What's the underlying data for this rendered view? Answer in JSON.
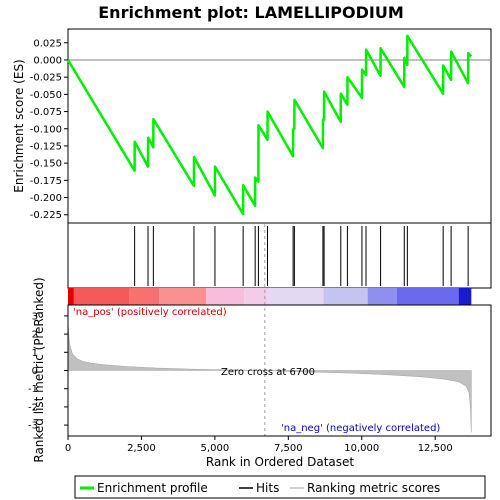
{
  "chart_data": {
    "type": "line",
    "title": "Enrichment plot: LAMELLIPODIUM",
    "x_axis": {
      "label": "Rank in Ordered Dataset",
      "lim": [
        0,
        14400
      ],
      "ticks": [
        0,
        2500,
        5000,
        7500,
        10000,
        12500
      ],
      "tick_labels": [
        "0",
        "2,500",
        "5,000",
        "7,500",
        "10,000",
        "12,500"
      ]
    },
    "es_panel": {
      "ylabel": "Enrichment score (ES)",
      "ylim": [
        -0.237,
        0.045
      ],
      "yticks": [
        0.025,
        0.0,
        -0.025,
        -0.05,
        -0.075,
        -0.1,
        -0.125,
        -0.15,
        -0.175,
        -0.2,
        -0.225
      ],
      "ytick_labels": [
        "0.025",
        "0.000",
        "-0.025",
        "-0.050",
        "-0.075",
        "-0.100",
        "-0.125",
        "-0.150",
        "-0.175",
        "-0.200",
        "-0.225"
      ],
      "grid": false,
      "series": [
        {
          "legend_index": 0,
          "color": "#00ee00",
          "x": [
            0,
            2266,
            2270,
            2722,
            2726,
            2904,
            2908,
            4286,
            4290,
            5000,
            5004,
            5960,
            5964,
            6370,
            6374,
            6480,
            6484,
            6790,
            6794,
            7661,
            7665,
            7705,
            7709,
            8676,
            8680,
            8716,
            8720,
            9284,
            9288,
            9510,
            9514,
            10005,
            10009,
            10143,
            10147,
            10639,
            10643,
            11446,
            11450,
            11550,
            11554,
            12770,
            12774,
            13040,
            13044,
            13620,
            13624,
            13730
          ],
          "y": [
            0.0,
            -0.161,
            -0.119,
            -0.155,
            -0.113,
            -0.127,
            -0.086,
            -0.183,
            -0.141,
            -0.197,
            -0.155,
            -0.224,
            -0.182,
            -0.212,
            -0.171,
            -0.177,
            -0.095,
            -0.116,
            -0.075,
            -0.14,
            -0.101,
            -0.1,
            -0.058,
            -0.128,
            -0.087,
            -0.087,
            -0.046,
            -0.09,
            -0.049,
            -0.065,
            -0.025,
            -0.055,
            -0.014,
            -0.022,
            0.015,
            -0.023,
            0.017,
            -0.039,
            0.003,
            -0.007,
            0.035,
            -0.049,
            -0.008,
            -0.029,
            0.012,
            -0.034,
            0.01,
            0.005
          ]
        }
      ]
    },
    "hits": {
      "legend_index": 1,
      "color": "#000000",
      "x": [
        2268,
        2724,
        2906,
        4288,
        5002,
        5962,
        6372,
        6482,
        6792,
        7663,
        7707,
        8678,
        8718,
        9286,
        9512,
        10007,
        10145,
        10641,
        11448,
        11552,
        12772,
        13042,
        13622
      ]
    },
    "ranking_panel": {
      "ylabel": "Ranked list metric (PreRanked)",
      "ylim": [
        -3.6,
        3.6
      ],
      "yticks": [
        3,
        2,
        1,
        0,
        -1,
        -2,
        -3
      ],
      "ytick_labels": [
        "3",
        "2",
        "1",
        "0",
        "-1",
        "-2",
        "-3"
      ],
      "series": [
        {
          "legend_index": 2,
          "color": "#c0c0c0",
          "x": [
            0,
            50,
            150,
            300,
            500,
            800,
            1200,
            2000,
            3000,
            4500,
            6700,
            8000,
            9500,
            11000,
            12000,
            12800,
            13300,
            13550,
            13650,
            13700,
            13730
          ],
          "y": [
            2.6,
            1.5,
            0.9,
            0.65,
            0.5,
            0.4,
            0.32,
            0.22,
            0.13,
            0.06,
            0.0,
            -0.07,
            -0.14,
            -0.24,
            -0.34,
            -0.47,
            -0.62,
            -0.85,
            -1.2,
            -2.0,
            -3.4
          ]
        }
      ],
      "zero_cross": {
        "x": 6700,
        "label": "Zero cross at 6700"
      },
      "pos_label": {
        "text": "'na_pos' (positively correlated)",
        "color": "#cc0000"
      },
      "neg_label": {
        "text": "'na_neg' (negatively correlated)",
        "color": "#0000cc"
      }
    },
    "heat_bar": {
      "segments": [
        {
          "from": 0,
          "to": 200,
          "color": "#e80000"
        },
        {
          "from": 200,
          "to": 2100,
          "color": "#f45a5a"
        },
        {
          "from": 2100,
          "to": 3100,
          "color": "#f87070"
        },
        {
          "from": 3100,
          "to": 4700,
          "color": "#fb9090"
        },
        {
          "from": 4700,
          "to": 6000,
          "color": "#f8bcdc"
        },
        {
          "from": 6000,
          "to": 6800,
          "color": "#f2cce8"
        },
        {
          "from": 6800,
          "to": 8700,
          "color": "#e4d8f4"
        },
        {
          "from": 8700,
          "to": 10200,
          "color": "#c4c4f0"
        },
        {
          "from": 10200,
          "to": 11200,
          "color": "#8f8ff0"
        },
        {
          "from": 11200,
          "to": 13300,
          "color": "#6a6aee"
        },
        {
          "from": 13300,
          "to": 13730,
          "color": "#1a1ad0"
        }
      ]
    },
    "legend": {
      "placement": "bottom",
      "entries": [
        "Enrichment profile",
        "Hits",
        "Ranking metric scores"
      ]
    }
  }
}
